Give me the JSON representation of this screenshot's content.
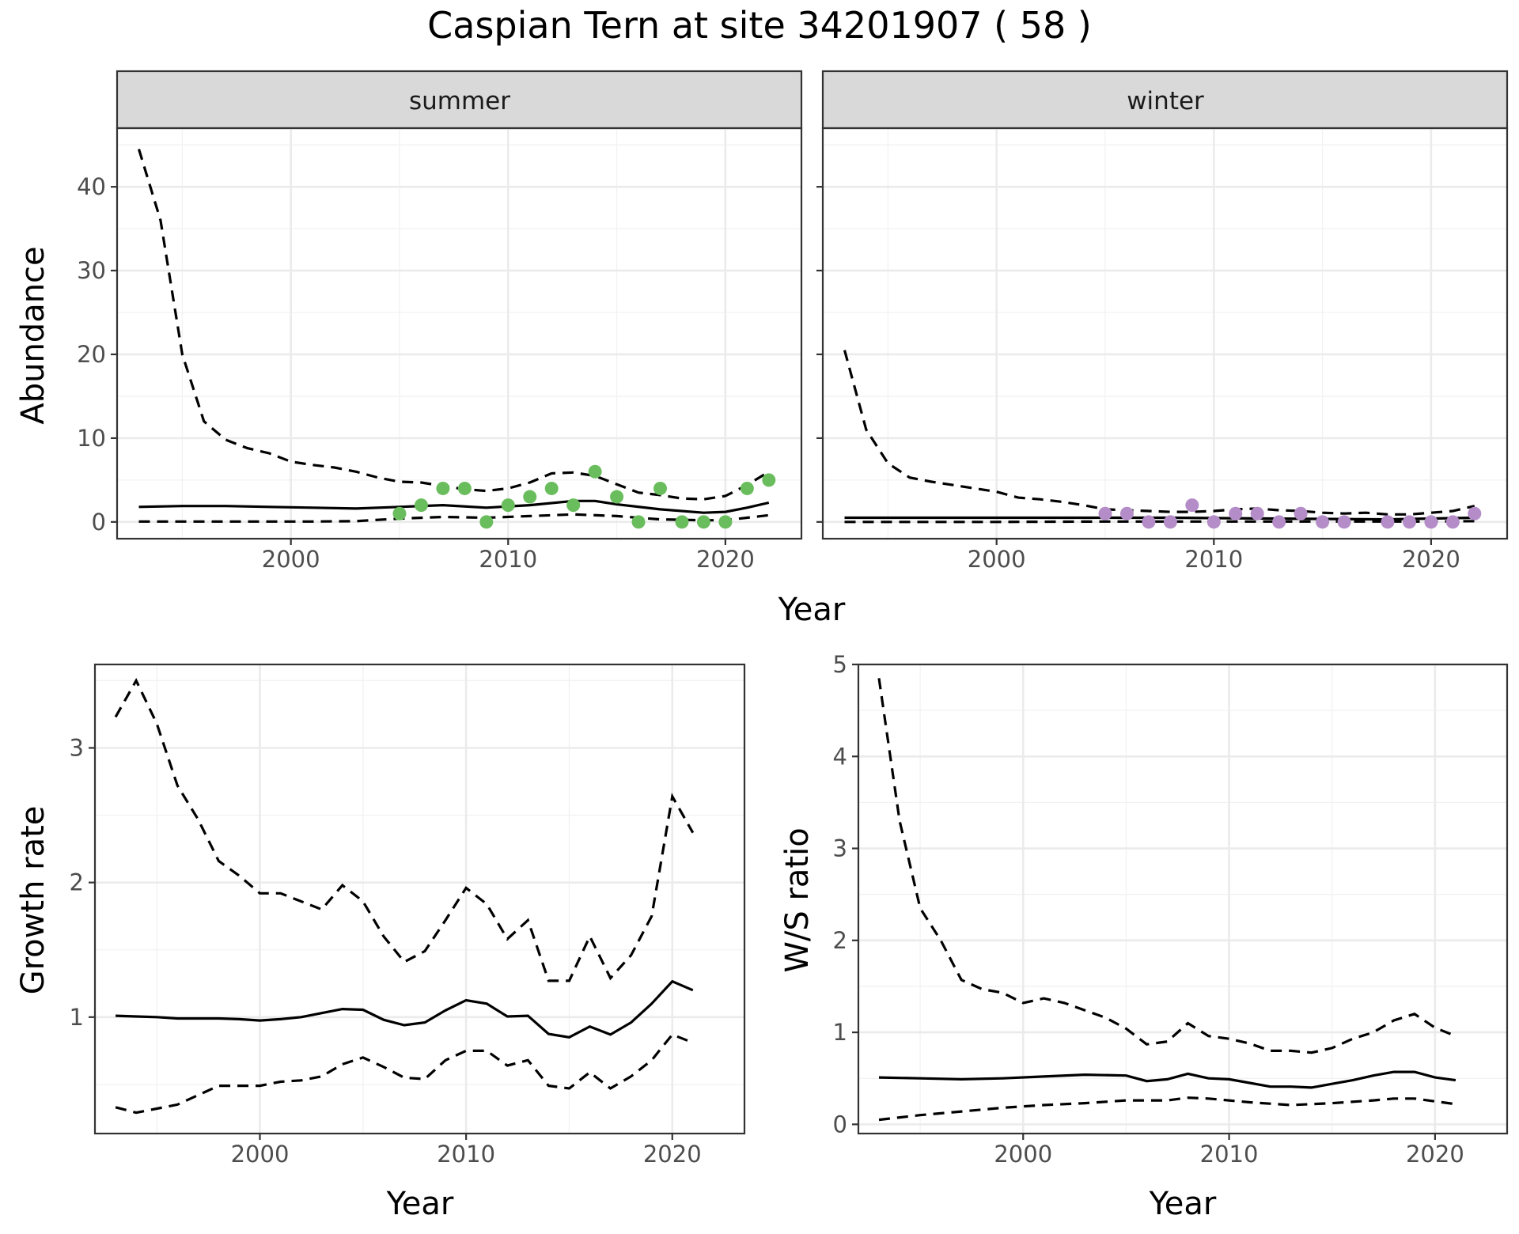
{
  "title": "Caspian Tern at site 34201907 ( 58 )",
  "colors": {
    "summer_points": "#6ABD5D",
    "winter_points": "#B48CC8",
    "strip_bg": "#d9d9d9"
  },
  "chart_data": [
    {
      "type": "line",
      "facet": "summer",
      "xlabel": "Year",
      "ylabel": "Abundance",
      "xlim": [
        1992,
        2023.5
      ],
      "ylim": [
        -2,
        47
      ],
      "x_ticks": [
        2000,
        2010,
        2020
      ],
      "y_ticks": [
        0,
        10,
        20,
        30,
        40
      ],
      "grid": true,
      "series": [
        {
          "role": "estimate",
          "style": "solid",
          "x": [
            1993,
            1995,
            1997,
            1999,
            2001,
            2003,
            2005,
            2007,
            2009,
            2011,
            2013,
            2014,
            2015,
            2017,
            2019,
            2020,
            2021,
            2022
          ],
          "y": [
            1.8,
            1.9,
            1.9,
            1.8,
            1.7,
            1.6,
            1.8,
            2.0,
            1.7,
            2.0,
            2.5,
            2.5,
            2.1,
            1.5,
            1.1,
            1.2,
            1.7,
            2.3
          ]
        },
        {
          "role": "upper",
          "style": "dashed",
          "x": [
            1993,
            1994,
            1995,
            1996,
            1997,
            1998,
            1999,
            2000,
            2001,
            2002,
            2003,
            2004,
            2005,
            2006,
            2007,
            2008,
            2009,
            2010,
            2011,
            2012,
            2013,
            2014,
            2015,
            2016,
            2017,
            2018,
            2019,
            2020,
            2021,
            2022
          ],
          "y": [
            44.5,
            36,
            20,
            12,
            9.8,
            8.8,
            8.2,
            7.2,
            6.8,
            6.5,
            6.0,
            5.3,
            4.8,
            4.7,
            4.3,
            3.9,
            3.7,
            4.0,
            4.7,
            5.8,
            5.9,
            5.5,
            4.5,
            3.5,
            3.2,
            2.8,
            2.7,
            3.1,
            4.4,
            6.0
          ]
        },
        {
          "role": "lower",
          "style": "dashed",
          "x": [
            1993,
            1997,
            2001,
            2003,
            2005,
            2007,
            2009,
            2011,
            2013,
            2015,
            2017,
            2019,
            2020,
            2021,
            2022
          ],
          "y": [
            0.05,
            0.05,
            0.05,
            0.1,
            0.4,
            0.6,
            0.5,
            0.7,
            0.9,
            0.7,
            0.3,
            0.2,
            0.2,
            0.5,
            0.8
          ]
        },
        {
          "role": "observed",
          "style": "points",
          "x": [
            2005,
            2006,
            2007,
            2008,
            2009,
            2010,
            2011,
            2012,
            2013,
            2014,
            2015,
            2016,
            2017,
            2018,
            2019,
            2020,
            2021,
            2022
          ],
          "y": [
            1,
            2,
            4,
            4,
            0,
            2,
            3,
            4,
            2,
            6,
            3,
            0,
            4,
            0,
            0,
            0,
            4,
            5
          ]
        }
      ]
    },
    {
      "type": "line",
      "facet": "winter",
      "xlabel": "Year",
      "ylabel": "Abundance",
      "xlim": [
        1992,
        2023.5
      ],
      "ylim": [
        -2,
        47
      ],
      "x_ticks": [
        2000,
        2010,
        2020
      ],
      "y_ticks": [
        0,
        10,
        20,
        30,
        40
      ],
      "grid": true,
      "series": [
        {
          "role": "estimate",
          "style": "solid",
          "x": [
            1993,
            1998,
            2003,
            2008,
            2013,
            2018,
            2022
          ],
          "y": [
            0.5,
            0.5,
            0.5,
            0.5,
            0.4,
            0.3,
            0.5
          ]
        },
        {
          "role": "upper",
          "style": "dashed",
          "x": [
            1993,
            1994,
            1995,
            1996,
            1997,
            1998,
            1999,
            2000,
            2001,
            2002,
            2003,
            2004,
            2005,
            2006,
            2007,
            2008,
            2009,
            2010,
            2011,
            2012,
            2013,
            2014,
            2015,
            2016,
            2017,
            2018,
            2019,
            2020,
            2021,
            2022
          ],
          "y": [
            20.5,
            11,
            7,
            5.3,
            4.8,
            4.4,
            4.0,
            3.6,
            2.9,
            2.7,
            2.4,
            2.0,
            1.5,
            1.4,
            1.3,
            1.2,
            1.2,
            1.3,
            1.5,
            1.6,
            1.4,
            1.3,
            1.1,
            1.0,
            1.1,
            0.9,
            0.9,
            1.1,
            1.3,
            1.9
          ]
        },
        {
          "role": "lower",
          "style": "dashed",
          "x": [
            1993,
            2000,
            2005,
            2010,
            2015,
            2020,
            2022
          ],
          "y": [
            0.0,
            0.0,
            0.05,
            0.05,
            0.05,
            0.05,
            0.1
          ]
        },
        {
          "role": "observed",
          "style": "points",
          "x": [
            2005,
            2006,
            2007,
            2008,
            2009,
            2010,
            2011,
            2012,
            2013,
            2014,
            2015,
            2016,
            2018,
            2019,
            2020,
            2021,
            2022
          ],
          "y": [
            1,
            1,
            0,
            0,
            2,
            0,
            1,
            1,
            0,
            1,
            0,
            0,
            0,
            0,
            0,
            0,
            1
          ]
        }
      ]
    },
    {
      "type": "line",
      "xlabel": "Year",
      "ylabel": "Growth rate",
      "xlim": [
        1992,
        2023.5
      ],
      "ylim": [
        0.135,
        3.62
      ],
      "x_ticks": [
        2000,
        2010,
        2020
      ],
      "y_ticks": [
        1,
        2,
        3
      ],
      "grid": true,
      "series": [
        {
          "role": "estimate",
          "style": "solid",
          "x": [
            1993,
            1994,
            1995,
            1996,
            1997,
            1998,
            1999,
            2000,
            2001,
            2002,
            2003,
            2004,
            2005,
            2006,
            2007,
            2008,
            2009,
            2010,
            2011,
            2012,
            2013,
            2014,
            2015,
            2016,
            2017,
            2018,
            2019,
            2020,
            2021
          ],
          "y": [
            1.01,
            1.005,
            1.0,
            0.99,
            0.99,
            0.99,
            0.985,
            0.975,
            0.985,
            1.0,
            1.03,
            1.06,
            1.055,
            0.98,
            0.94,
            0.96,
            1.05,
            1.125,
            1.1,
            1.005,
            1.01,
            0.875,
            0.85,
            0.93,
            0.87,
            0.96,
            1.1,
            1.265,
            1.2
          ]
        },
        {
          "role": "upper",
          "style": "dashed",
          "x": [
            1993,
            1994,
            1995,
            1996,
            1997,
            1998,
            1999,
            2000,
            2001,
            2002,
            2003,
            2004,
            2005,
            2006,
            2007,
            2008,
            2009,
            2010,
            2011,
            2012,
            2013,
            2014,
            2015,
            2016,
            2017,
            2018,
            2019,
            2020,
            2021
          ],
          "y": [
            3.23,
            3.5,
            3.18,
            2.72,
            2.47,
            2.16,
            2.05,
            1.92,
            1.92,
            1.86,
            1.8,
            1.98,
            1.86,
            1.6,
            1.41,
            1.49,
            1.72,
            1.96,
            1.84,
            1.58,
            1.72,
            1.27,
            1.27,
            1.6,
            1.29,
            1.46,
            1.75,
            2.64,
            2.37
          ]
        },
        {
          "role": "lower",
          "style": "dashed",
          "x": [
            1993,
            1994,
            1995,
            1996,
            1997,
            1998,
            1999,
            2000,
            2001,
            2002,
            2003,
            2004,
            2005,
            2006,
            2007,
            2008,
            2009,
            2010,
            2011,
            2012,
            2013,
            2014,
            2015,
            2016,
            2017,
            2018,
            2019,
            2020,
            2021
          ],
          "y": [
            0.33,
            0.29,
            0.32,
            0.35,
            0.42,
            0.49,
            0.49,
            0.49,
            0.52,
            0.53,
            0.56,
            0.65,
            0.7,
            0.63,
            0.55,
            0.54,
            0.68,
            0.75,
            0.75,
            0.64,
            0.68,
            0.49,
            0.47,
            0.59,
            0.47,
            0.56,
            0.68,
            0.87,
            0.81
          ]
        }
      ]
    },
    {
      "type": "line",
      "xlabel": "Year",
      "ylabel": "W/S ratio",
      "xlim": [
        1992,
        2023.5
      ],
      "ylim": [
        -0.1,
        5.0
      ],
      "x_ticks": [
        2000,
        2010,
        2020
      ],
      "y_ticks": [
        0,
        1,
        2,
        3,
        4,
        5
      ],
      "grid": true,
      "series": [
        {
          "role": "estimate",
          "style": "solid",
          "x": [
            1993,
            1995,
            1997,
            1999,
            2001,
            2003,
            2005,
            2006,
            2007,
            2008,
            2009,
            2010,
            2011,
            2012,
            2013,
            2014,
            2015,
            2016,
            2017,
            2018,
            2019,
            2020,
            2021
          ],
          "y": [
            0.51,
            0.5,
            0.49,
            0.5,
            0.52,
            0.54,
            0.53,
            0.47,
            0.49,
            0.55,
            0.5,
            0.49,
            0.45,
            0.41,
            0.41,
            0.4,
            0.44,
            0.48,
            0.53,
            0.57,
            0.57,
            0.51,
            0.48
          ]
        },
        {
          "role": "upper",
          "style": "dashed",
          "x": [
            1993,
            1994,
            1995,
            1996,
            1997,
            1998,
            1999,
            2000,
            2001,
            2002,
            2003,
            2004,
            2005,
            2006,
            2007,
            2008,
            2009,
            2010,
            2011,
            2012,
            2013,
            2014,
            2015,
            2016,
            2017,
            2018,
            2019,
            2020,
            2021
          ],
          "y": [
            4.85,
            3.3,
            2.35,
            2.0,
            1.57,
            1.47,
            1.43,
            1.32,
            1.37,
            1.32,
            1.24,
            1.16,
            1.04,
            0.87,
            0.9,
            1.1,
            0.96,
            0.93,
            0.88,
            0.8,
            0.8,
            0.78,
            0.83,
            0.93,
            1.0,
            1.13,
            1.2,
            1.05,
            0.96
          ]
        },
        {
          "role": "lower",
          "style": "dashed",
          "x": [
            1993,
            1995,
            1997,
            1999,
            2001,
            2003,
            2005,
            2007,
            2008,
            2009,
            2011,
            2013,
            2015,
            2017,
            2018,
            2019,
            2021
          ],
          "y": [
            0.05,
            0.1,
            0.14,
            0.18,
            0.21,
            0.23,
            0.26,
            0.26,
            0.29,
            0.28,
            0.24,
            0.21,
            0.23,
            0.26,
            0.28,
            0.28,
            0.22
          ]
        }
      ]
    }
  ]
}
